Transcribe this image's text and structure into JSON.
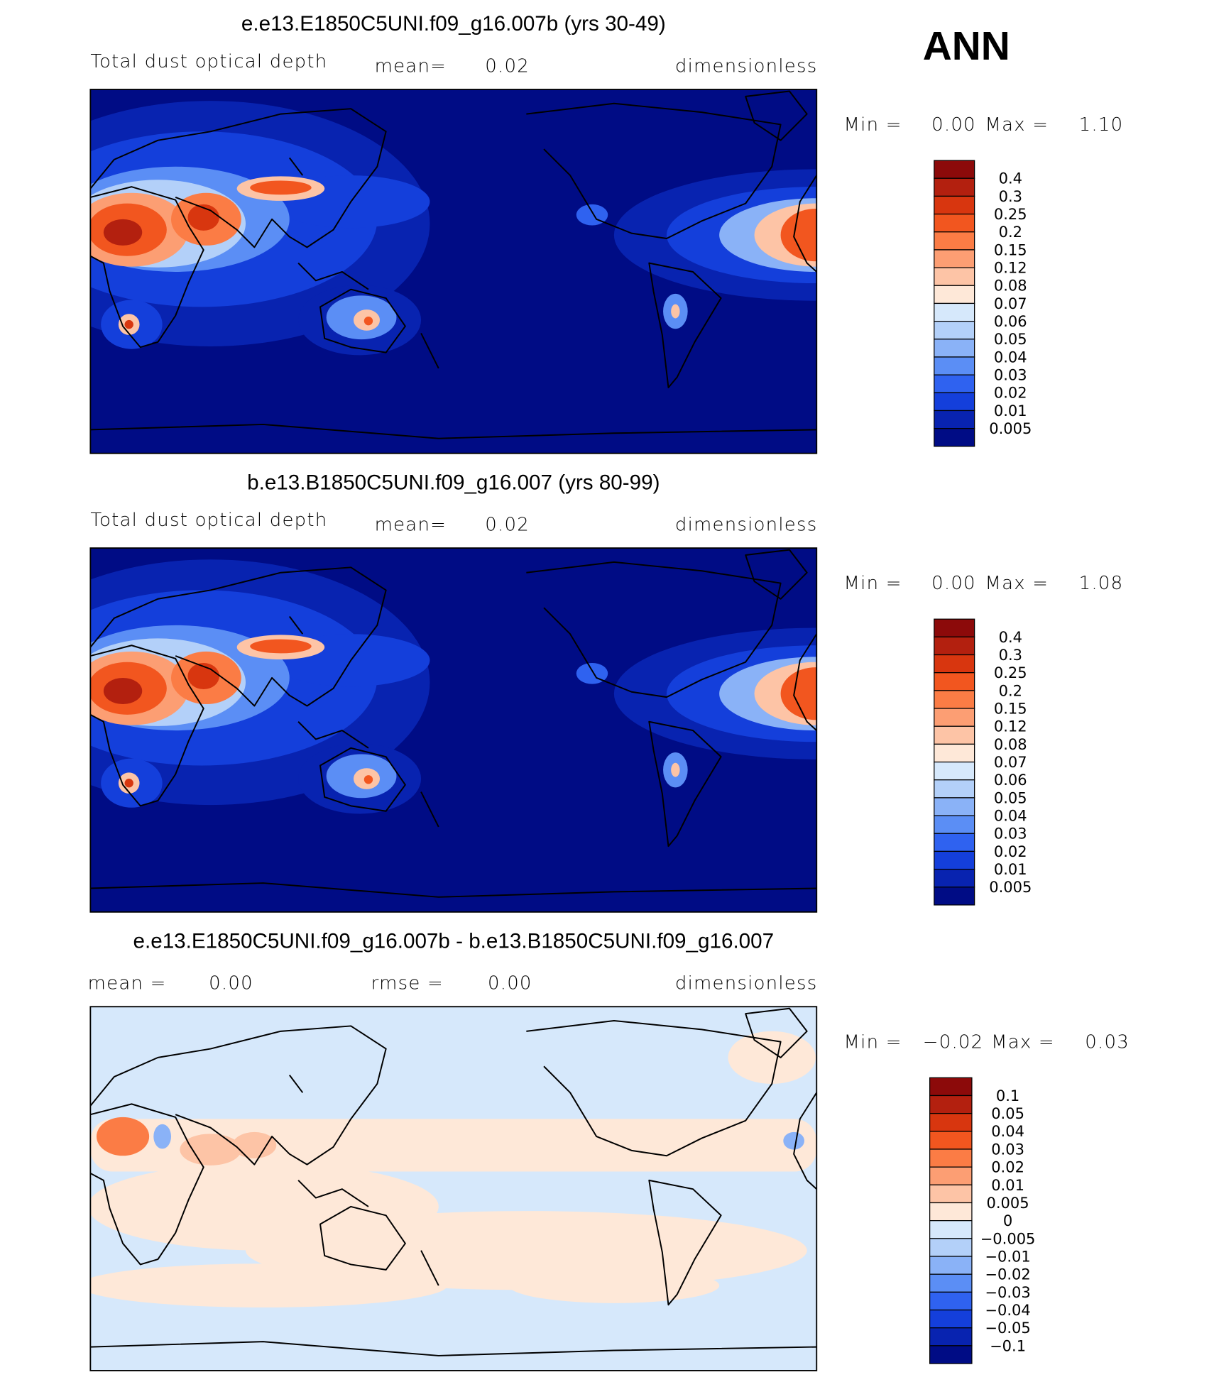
{
  "label": "ANN",
  "panels": [
    {
      "title": "e.e13.E1850C5UNI.f09_g16.007b (yrs 30-49)",
      "variable": "Total dust optical depth",
      "mean_label": "mean=",
      "mean": "0.02",
      "units": "dimensionless",
      "min_label": "Min =",
      "min": "0.00",
      "max_label": "Max =",
      "max": "1.10",
      "colorbar": {
        "labels": [
          "0.4",
          "0.3",
          "0.25",
          "0.2",
          "0.15",
          "0.12",
          "0.08",
          "0.07",
          "0.06",
          "0.05",
          "0.04",
          "0.03",
          "0.02",
          "0.01",
          "0.005"
        ],
        "colors": [
          "#8c0a0a",
          "#b3200f",
          "#d8360f",
          "#f2561f",
          "#fb7c45",
          "#fc9e73",
          "#fdc4a6",
          "#fee8d8",
          "#d6e8fb",
          "#b3d0f9",
          "#8ab2f7",
          "#5b8ef5",
          "#2f62f0",
          "#143fdb",
          "#0823b0",
          "#000c85"
        ]
      }
    },
    {
      "title": "b.e13.B1850C5UNI.f09_g16.007 (yrs 80-99)",
      "variable": "Total dust optical depth",
      "mean_label": "mean=",
      "mean": "0.02",
      "units": "dimensionless",
      "min_label": "Min =",
      "min": "0.00",
      "max_label": "Max =",
      "max": "1.08",
      "colorbar": {
        "labels": [
          "0.4",
          "0.3",
          "0.25",
          "0.2",
          "0.15",
          "0.12",
          "0.08",
          "0.07",
          "0.06",
          "0.05",
          "0.04",
          "0.03",
          "0.02",
          "0.01",
          "0.005"
        ],
        "colors": [
          "#8c0a0a",
          "#b3200f",
          "#d8360f",
          "#f2561f",
          "#fb7c45",
          "#fc9e73",
          "#fdc4a6",
          "#fee8d8",
          "#d6e8fb",
          "#b3d0f9",
          "#8ab2f7",
          "#5b8ef5",
          "#2f62f0",
          "#143fdb",
          "#0823b0",
          "#000c85"
        ]
      }
    },
    {
      "title": "e.e13.E1850C5UNI.f09_g16.007b - b.e13.B1850C5UNI.f09_g16.007",
      "mean_label": "mean =",
      "mean": "0.00",
      "rmse_label": "rmse =",
      "rmse": "0.00",
      "units": "dimensionless",
      "min_label": "Min =",
      "min": "−0.02",
      "max_label": "Max =",
      "max": "0.03",
      "colorbar": {
        "labels": [
          "0.1",
          "0.05",
          "0.04",
          "0.03",
          "0.02",
          "0.01",
          "0.005",
          "0",
          "−0.005",
          "−0.01",
          "−0.02",
          "−0.03",
          "−0.04",
          "−0.05",
          "−0.1"
        ],
        "colors": [
          "#8c0a0a",
          "#b3200f",
          "#d8360f",
          "#f2561f",
          "#fb7c45",
          "#fc9e73",
          "#fdc4a6",
          "#fee8d8",
          "#d6e8fb",
          "#b3d0f9",
          "#8ab2f7",
          "#5b8ef5",
          "#2f62f0",
          "#143fdb",
          "#0823b0",
          "#000c85"
        ]
      }
    }
  ]
}
